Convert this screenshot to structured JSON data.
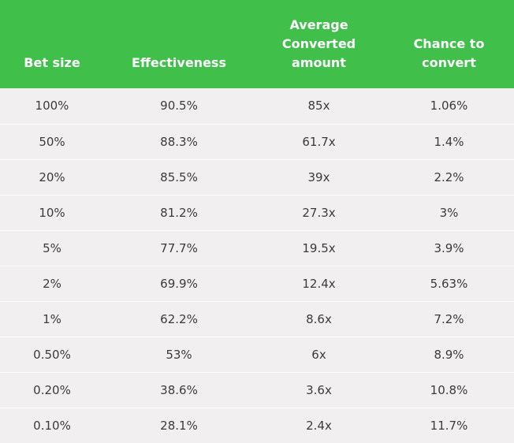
{
  "table": {
    "headers": [
      "Bet size",
      "Effectiveness",
      "Average\nConverted\namount",
      "Chance to\nconvert"
    ],
    "rows": [
      [
        "100%",
        "90.5%",
        "85x",
        "1.06%"
      ],
      [
        "50%",
        "88.3%",
        "61.7x",
        "1.4%"
      ],
      [
        "20%",
        "85.5%",
        "39x",
        "2.2%"
      ],
      [
        "10%",
        "81.2%",
        "27.3x",
        "3%"
      ],
      [
        "5%",
        "77.7%",
        "19.5x",
        "3.9%"
      ],
      [
        "2%",
        "69.9%",
        "12.4x",
        "5.63%"
      ],
      [
        "1%",
        "62.2%",
        "8.6x",
        "7.2%"
      ],
      [
        "0.50%",
        "53%",
        "6x",
        "8.9%"
      ],
      [
        "0.20%",
        "38.6%",
        "3.6x",
        "10.8%"
      ],
      [
        "0.10%",
        "28.1%",
        "2.4x",
        "11.7%"
      ]
    ]
  },
  "colors": {
    "header_bg": "#41bf4b",
    "header_text": "#ffffff",
    "row_bg": "#f1efef",
    "cell_text": "#3b3b3b",
    "row_divider": "#ffffff"
  }
}
